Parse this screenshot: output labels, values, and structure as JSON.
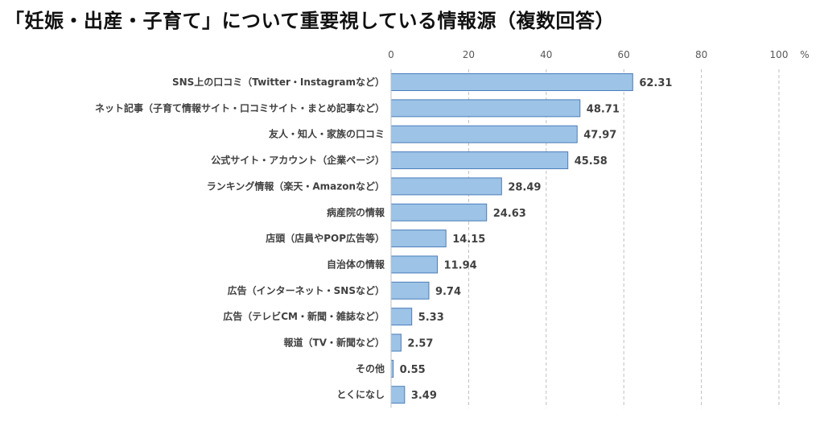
{
  "title": "「妊娠・出産・子育て」について重要視している情報源（複数回答）",
  "chart_data": {
    "type": "bar",
    "orientation": "horizontal",
    "unit": "%",
    "xlim": [
      0,
      100
    ],
    "ticks": [
      0,
      20,
      40,
      60,
      80,
      100
    ],
    "grid": true,
    "bar_color": "#9dc3e6",
    "bar_edge_color": "#4a7ebb",
    "categories": [
      "SNS上の口コミ（Twitter・Instagramなど）",
      "ネット記事（子育て情報サイト・口コミサイト・まとめ記事など）",
      "友人・知人・家族の口コミ",
      "公式サイト・アカウント（企業ページ）",
      "ランキング情報（楽天・Amazonなど）",
      "病産院の情報",
      "店頭（店員やPOP広告等）",
      "自治体の情報",
      "広告（インターネット・SNSなど）",
      "広告（テレビCM・新聞・雑誌など）",
      "報道（TV・新聞など）",
      "その他",
      "とくになし"
    ],
    "values": [
      62.31,
      48.71,
      47.97,
      45.58,
      28.49,
      24.63,
      14.15,
      11.94,
      9.74,
      5.33,
      2.57,
      0.55,
      3.49
    ]
  }
}
